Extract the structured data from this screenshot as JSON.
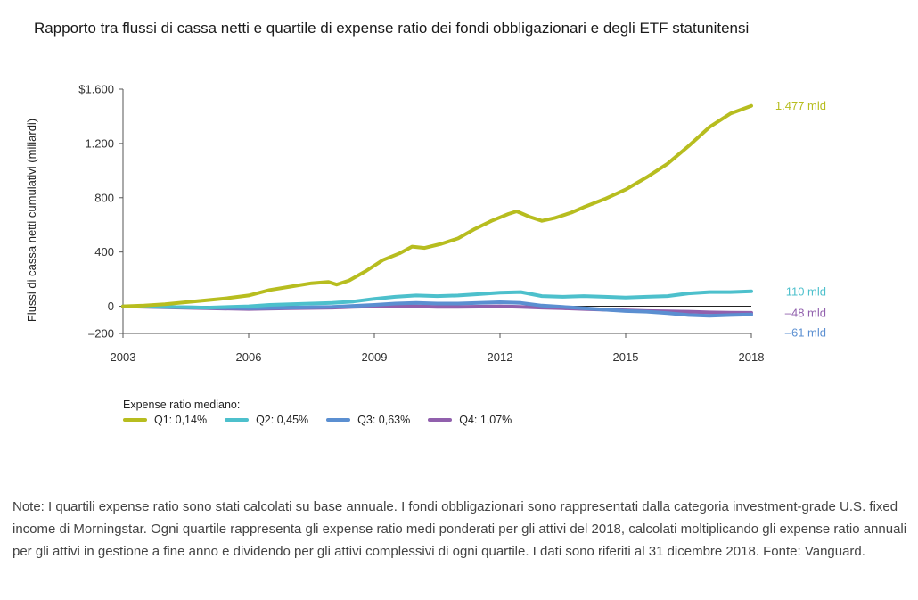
{
  "chart_data": {
    "type": "line",
    "title": "Rapporto tra flussi di cassa netti e quartile di expense ratio dei fondi obbligazionari e degli ETF statunitensi",
    "ylabel": "Flussi di cassa netti cumulativi (miliardi)",
    "xlabel": "",
    "xlim": [
      2003,
      2018
    ],
    "ylim": [
      -200,
      1600
    ],
    "x_ticks": [
      "2003",
      "2006",
      "2009",
      "2012",
      "2015",
      "2018"
    ],
    "y_ticks": [
      {
        "value": 1600,
        "label": "$1.600"
      },
      {
        "value": 1200,
        "label": "1.200"
      },
      {
        "value": 800,
        "label": "800"
      },
      {
        "value": 400,
        "label": "400"
      },
      {
        "value": 0,
        "label": "0"
      },
      {
        "value": -200,
        "label": "–200"
      }
    ],
    "legend_title": "Expense ratio mediano:",
    "series": [
      {
        "name": "Q1: 0,14%",
        "color": "#b7bd1f",
        "end_label": "1.477 mld",
        "x": [
          2003,
          2003.5,
          2004,
          2004.5,
          2005,
          2005.5,
          2006,
          2006.5,
          2007,
          2007.5,
          2007.9,
          2008.1,
          2008.4,
          2008.8,
          2009.2,
          2009.6,
          2009.9,
          2010.2,
          2010.6,
          2011,
          2011.4,
          2011.8,
          2012.2,
          2012.4,
          2012.7,
          2013,
          2013.3,
          2013.7,
          2014,
          2014.5,
          2015,
          2015.5,
          2016,
          2016.5,
          2017,
          2017.5,
          2018
        ],
        "y": [
          0,
          5,
          15,
          30,
          45,
          60,
          80,
          120,
          145,
          170,
          180,
          160,
          190,
          260,
          340,
          390,
          440,
          430,
          460,
          500,
          570,
          630,
          680,
          700,
          660,
          630,
          650,
          690,
          730,
          790,
          860,
          950,
          1050,
          1180,
          1320,
          1420,
          1477
        ]
      },
      {
        "name": "Q2: 0,45%",
        "color": "#4dc0cc",
        "end_label": "110 mld",
        "x": [
          2003,
          2004,
          2005,
          2006,
          2006.5,
          2007,
          2007.5,
          2008,
          2008.5,
          2009,
          2009.5,
          2010,
          2010.5,
          2011,
          2011.5,
          2012,
          2012.5,
          2013,
          2013.5,
          2014,
          2014.5,
          2015,
          2015.5,
          2016,
          2016.5,
          2017,
          2017.5,
          2018
        ],
        "y": [
          0,
          -5,
          -10,
          0,
          10,
          15,
          20,
          25,
          35,
          55,
          70,
          80,
          75,
          80,
          90,
          100,
          105,
          75,
          70,
          75,
          70,
          65,
          70,
          75,
          95,
          105,
          105,
          110
        ]
      },
      {
        "name": "Q3: 0,63%",
        "color": "#5b8fd1",
        "end_label": "–61 mld",
        "x": [
          2003,
          2004,
          2005,
          2006,
          2007,
          2008,
          2009,
          2009.5,
          2010,
          2010.5,
          2011,
          2011.5,
          2012,
          2012.5,
          2013,
          2013.5,
          2014,
          2014.5,
          2015,
          2015.5,
          2016,
          2016.5,
          2017,
          2017.5,
          2018
        ],
        "y": [
          0,
          -5,
          -10,
          -15,
          -10,
          -5,
          10,
          20,
          25,
          20,
          20,
          25,
          30,
          25,
          5,
          -5,
          -15,
          -25,
          -35,
          -40,
          -50,
          -65,
          -70,
          -65,
          -61
        ]
      },
      {
        "name": "Q4: 1,07%",
        "color": "#9160ad",
        "end_label": "–48 mld",
        "x": [
          2003,
          2004,
          2005,
          2006,
          2007,
          2008,
          2008.5,
          2009,
          2009.5,
          2010,
          2010.5,
          2011,
          2011.5,
          2012,
          2012.5,
          2013,
          2013.5,
          2014,
          2014.5,
          2015,
          2015.5,
          2016,
          2016.5,
          2017,
          2017.5,
          2018
        ],
        "y": [
          0,
          -8,
          -15,
          -20,
          -15,
          -10,
          -5,
          0,
          2,
          0,
          -5,
          -5,
          -3,
          0,
          -5,
          -10,
          -15,
          -20,
          -25,
          -30,
          -35,
          -38,
          -40,
          -45,
          -47,
          -48
        ]
      }
    ]
  },
  "note": "Note: I quartili expense ratio sono stati calcolati su base annuale. I fondi obbligazionari sono rappresentati dalla categoria investment-grade U.S. fixed income di Morningstar. Ogni quartile rappresenta gli expense ratio medi ponderati per gli attivi del 2018, calcolati moltiplicando gli expense ratio annuali per gli attivi in gestione a fine anno e dividendo per gli attivi complessivi di ogni quartile. I dati sono riferiti al 31 dicembre 2018. Fonte: Vanguard."
}
